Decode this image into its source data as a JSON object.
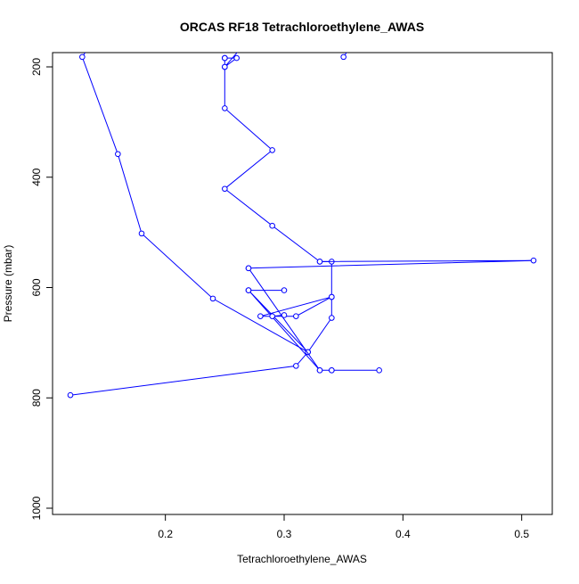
{
  "chart_data": {
    "type": "line",
    "title": "ORCAS RF18 Tetrachloroethylene_AWAS",
    "xlabel": "Tetrachloroethylene_AWAS",
    "ylabel": "Pressure (mbar)",
    "xlim": [
      0.12,
      0.51
    ],
    "ylim": [
      1000,
      180
    ],
    "y_reversed": true,
    "x_ticks": [
      0.2,
      0.3,
      0.4,
      0.5
    ],
    "x_tick_labels": [
      "0.2",
      "0.3",
      "0.4",
      "0.5"
    ],
    "y_ticks": [
      200,
      400,
      600,
      800,
      1000
    ],
    "y_tick_labels": [
      "200",
      "400",
      "600",
      "800",
      "1000"
    ],
    "grid": false,
    "series_color": "#0000ff",
    "series": [
      {
        "x": [
          0.12,
          0.31,
          0.32,
          0.24,
          0.18,
          0.16,
          0.13,
          0.14
        ],
        "y": [
          795,
          742,
          717,
          620,
          502,
          358,
          182,
          150
        ]
      },
      {
        "x": [
          0.35,
          0.36
        ],
        "y": [
          182,
          150
        ]
      },
      {
        "x": [
          0.25,
          0.25
        ],
        "y": [
          184,
          184
        ]
      },
      {
        "x": [
          0.38,
          0.34,
          0.34,
          0.33,
          0.27,
          0.32,
          0.34,
          0.34,
          0.28,
          0.31,
          0.34,
          0.34,
          0.33,
          0.29,
          0.25,
          0.29,
          0.25,
          0.25,
          0.25,
          0.26,
          0.25,
          0.27
        ],
        "y": [
          750,
          750,
          750,
          750,
          605,
          717,
          655,
          617,
          652,
          652,
          617,
          553,
          553,
          488,
          421,
          351,
          275,
          200,
          184,
          184,
          200,
          150
        ]
      },
      {
        "x": [
          0.29,
          0.3
        ],
        "y": [
          652,
          650
        ]
      },
      {
        "x": [
          0.33,
          0.27
        ],
        "y": [
          750,
          565
        ]
      },
      {
        "x": [
          0.27,
          0.51,
          0.33
        ],
        "y": [
          565,
          551,
          553
        ]
      },
      {
        "x": [
          0.27,
          0.3
        ],
        "y": [
          605,
          605
        ]
      }
    ]
  }
}
